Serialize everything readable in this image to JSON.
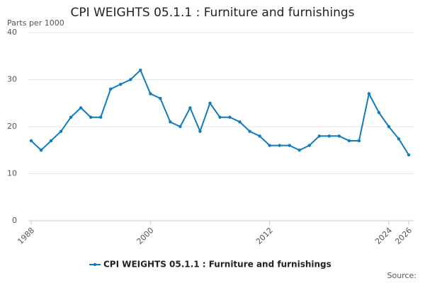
{
  "chart_data": {
    "type": "line",
    "title": "CPI WEIGHTS 05.1.1 : Furniture and furnishings",
    "y_label": "Parts per 1000",
    "source": "Source:",
    "x": [
      1988,
      1989,
      1990,
      1991,
      1992,
      1993,
      1994,
      1995,
      1996,
      1997,
      1998,
      1999,
      2000,
      2001,
      2002,
      2003,
      2004,
      2005,
      2006,
      2007,
      2008,
      2009,
      2010,
      2011,
      2012,
      2013,
      2014,
      2015,
      2016,
      2017,
      2018,
      2019,
      2020,
      2021,
      2022,
      2023,
      2024,
      2025,
      2026
    ],
    "series": [
      {
        "name": "CPI WEIGHTS 05.1.1 : Furniture and furnishings",
        "color": "#0f7cbf",
        "values": [
          17,
          15,
          17,
          19,
          22,
          24,
          22,
          22,
          28,
          29,
          30,
          32,
          27,
          26,
          21,
          20,
          24,
          19,
          25,
          22,
          22,
          21,
          19,
          18,
          16,
          16,
          16,
          15,
          16,
          18,
          18,
          18,
          17,
          17,
          27,
          23,
          20,
          17.4,
          14
        ]
      }
    ],
    "xlim": [
      1988,
      2026
    ],
    "xticks": [
      1988,
      2000,
      2012,
      2024,
      2026
    ],
    "ylim": [
      0,
      40
    ],
    "yticks": [
      0,
      10,
      20,
      30,
      40
    ],
    "grid": true,
    "legend": "bottom"
  }
}
